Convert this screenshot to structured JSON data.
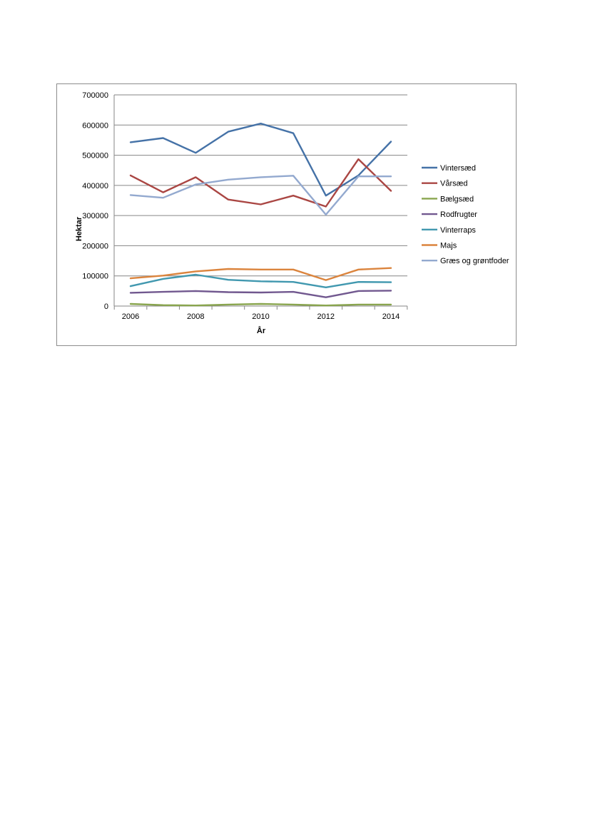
{
  "chart_data": {
    "type": "line",
    "title": "",
    "xlabel": "År",
    "ylabel": "Hektar",
    "x": [
      2006,
      2007,
      2008,
      2009,
      2010,
      2011,
      2012,
      2013,
      2014
    ],
    "x_tick_labels": [
      "2006",
      "2008",
      "2010",
      "2012",
      "2014"
    ],
    "ylim": [
      0,
      700000
    ],
    "y_tick_labels": [
      "0",
      "100000",
      "200000",
      "300000",
      "400000",
      "500000",
      "600000",
      "700000"
    ],
    "grid": "horizontal",
    "legend_position": "right",
    "series": [
      {
        "name": "Vintersæd",
        "color": "#4572a7",
        "values": [
          543000,
          557000,
          508000,
          578000,
          605000,
          573000,
          366000,
          433000,
          545000
        ]
      },
      {
        "name": "Vårsæd",
        "color": "#aa4643",
        "values": [
          433000,
          377000,
          427000,
          353000,
          337000,
          366000,
          330000,
          487000,
          382000
        ]
      },
      {
        "name": "Bælgsæd",
        "color": "#89a54e",
        "values": [
          7000,
          3000,
          2000,
          5000,
          7000,
          5000,
          2000,
          5000,
          5000
        ]
      },
      {
        "name": "Rodfrugter",
        "color": "#71588f",
        "values": [
          44000,
          47000,
          50000,
          46000,
          45000,
          47000,
          29000,
          50000,
          51000
        ]
      },
      {
        "name": "Vinterraps",
        "color": "#4198af",
        "values": [
          66000,
          90000,
          104000,
          87000,
          82000,
          80000,
          62000,
          80000,
          79000
        ]
      },
      {
        "name": "Majs",
        "color": "#db843d",
        "values": [
          92000,
          101000,
          115000,
          123000,
          121000,
          121000,
          86000,
          121000,
          126000
        ]
      },
      {
        "name": "Græs og grøntfoder",
        "color": "#93a9cf",
        "values": [
          368000,
          359000,
          403000,
          419000,
          427000,
          432000,
          303000,
          430000,
          430000
        ]
      }
    ]
  }
}
